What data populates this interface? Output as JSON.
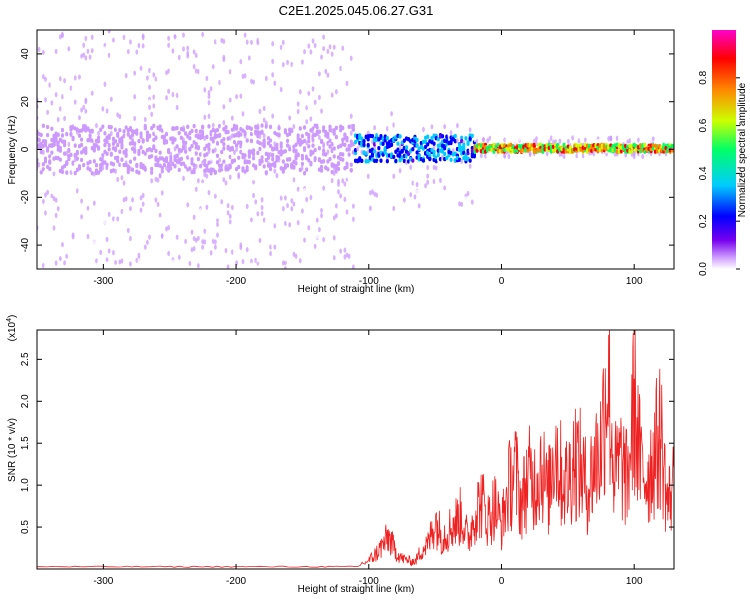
{
  "title": "C2E1.2025.045.06.27.G31",
  "chart_data": [
    {
      "type": "heatmap",
      "xlabel": "Height of straight line (km)",
      "ylabel": "Frequency (Hz)",
      "xlim": [
        -350,
        130
      ],
      "ylim": [
        -50,
        50
      ],
      "xticks": [
        -300,
        -200,
        -100,
        0,
        100
      ],
      "yticks": [
        -40,
        -20,
        0,
        20,
        40
      ],
      "colorbar": {
        "label": "Normalized spectral amplitude",
        "range": [
          0,
          1
        ],
        "ticks": [
          "0.0",
          "0.2",
          "0.4",
          "0.6",
          "0.8"
        ],
        "colormap": [
          "#ffffff",
          "#cc99ff",
          "#7700ee",
          "#0000ff",
          "#00ccff",
          "#00ff66",
          "#ccff00",
          "#ff8800",
          "#ff0000",
          "#ff00cc"
        ]
      },
      "regions": [
        {
          "x": [
            -350,
            -110
          ],
          "freq_spread": [
            -50,
            50
          ],
          "core_band": [
            -10,
            10
          ],
          "typical_amplitude": 0.1
        },
        {
          "x": [
            -110,
            -20
          ],
          "freq_spread": [
            -25,
            15
          ],
          "core_band": [
            -5,
            6
          ],
          "typical_amplitude": 0.45
        },
        {
          "x": [
            -20,
            130
          ],
          "freq_spread": [
            -3,
            5
          ],
          "core_band": [
            -1,
            2
          ],
          "typical_amplitude": 0.85
        }
      ]
    },
    {
      "type": "line",
      "xlabel": "Height of straight line (km)",
      "ylabel": "SNR (10 * v/v)",
      "yscale_label": "(x10",
      "yscale_exp": "4",
      "xlim": [
        -350,
        130
      ],
      "ylim": [
        0,
        2.85
      ],
      "xticks": [
        -300,
        -200,
        -100,
        0,
        100
      ],
      "yticks": [
        "0.5",
        "1.0",
        "1.5",
        "2.0",
        "2.5"
      ],
      "color": "#ee2222",
      "series": [
        {
          "x": [
            -350,
            -300,
            -250,
            -200,
            -150,
            -110,
            -100,
            -95,
            -90,
            -85,
            -80,
            -75,
            -70,
            -65,
            -60,
            -55,
            -50,
            -45,
            -40,
            -35,
            -30,
            -25,
            -20,
            -15,
            -10,
            -5,
            0,
            5,
            10,
            15,
            20,
            25,
            30,
            35,
            40,
            45,
            50,
            55,
            60,
            65,
            70,
            75,
            80,
            85,
            90,
            95,
            100,
            105,
            110,
            115,
            120,
            125,
            130
          ],
          "values": [
            0.02,
            0.02,
            0.02,
            0.02,
            0.02,
            0.03,
            0.12,
            0.2,
            0.32,
            0.45,
            0.25,
            0.15,
            0.12,
            0.1,
            0.28,
            0.35,
            0.7,
            0.45,
            0.55,
            0.65,
            0.75,
            0.4,
            0.8,
            0.95,
            0.7,
            0.9,
            0.6,
            1.1,
            1.4,
            0.9,
            1.3,
            1.2,
            1.5,
            1.0,
            1.8,
            1.3,
            1.2,
            1.6,
            1.4,
            1.1,
            1.5,
            1.7,
            2.85,
            1.3,
            1.5,
            1.2,
            2.35,
            1.4,
            1.3,
            1.6,
            1.9,
            0.9,
            1.2
          ]
        }
      ]
    }
  ]
}
